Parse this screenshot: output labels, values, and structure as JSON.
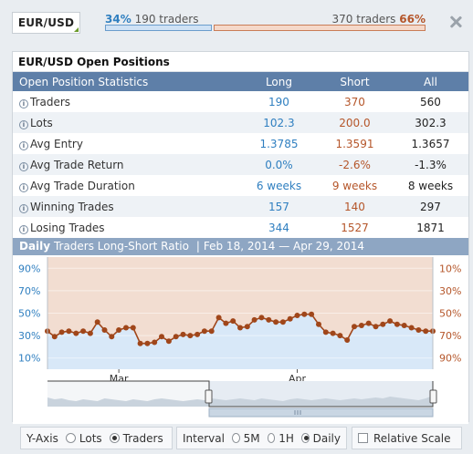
{
  "header": {
    "symbol": "EUR/USD",
    "long_pct": "34%",
    "long_traders": "190 traders",
    "short_traders": "370 traders",
    "short_pct": "66%",
    "long_fraction": 0.34
  },
  "panel": {
    "title": "EUR/USD Open Positions",
    "columns": [
      "Open Position Statistics",
      "Long",
      "Short",
      "All"
    ],
    "rows": [
      {
        "label": "Traders",
        "long": "190",
        "short": "370",
        "all": "560"
      },
      {
        "label": "Lots",
        "long": "102.3",
        "short": "200.0",
        "all": "302.3"
      },
      {
        "label": "Avg Entry",
        "long": "1.3785",
        "short": "1.3591",
        "all": "1.3657"
      },
      {
        "label": "Avg Trade Return",
        "long": "0.0%",
        "short": "-2.6%",
        "all": "-1.3%"
      },
      {
        "label": "Avg Trade Duration",
        "long": "6 weeks",
        "short": "9 weeks",
        "all": "8 weeks"
      },
      {
        "label": "Winning Trades",
        "long": "157",
        "short": "140",
        "all": "297"
      },
      {
        "label": "Losing Trades",
        "long": "344",
        "short": "1527",
        "all": "1871"
      }
    ],
    "info_glyph": "i"
  },
  "chart_header": {
    "period": "Daily",
    "title": "Traders Long-Short Ratio",
    "separator": "|",
    "range": "Feb 18, 2014 — Apr 29, 2014"
  },
  "chart_data": {
    "type": "area",
    "left_axis_ticks": [
      "90%",
      "70%",
      "50%",
      "30%",
      "10%"
    ],
    "left_axis_values": [
      90,
      70,
      50,
      30,
      10
    ],
    "right_axis_ticks": [
      "10%",
      "30%",
      "50%",
      "70%",
      "90%"
    ],
    "x_ticks": [
      "Mar",
      "Apr"
    ],
    "x_tick_index": [
      10,
      35
    ],
    "ylim": [
      0,
      100
    ],
    "series": [
      {
        "values": [
          34,
          29,
          33,
          34,
          32,
          34,
          32,
          42,
          35,
          29,
          35,
          37,
          37,
          23,
          23,
          24,
          29,
          25,
          29,
          31,
          30,
          31,
          34,
          34,
          46,
          41,
          43,
          37,
          38,
          44,
          46,
          44,
          42,
          42,
          45,
          48,
          49,
          49,
          40,
          33,
          32,
          30,
          26,
          38,
          39,
          41,
          38,
          40,
          43,
          40,
          39,
          37,
          35,
          34,
          34
        ]
      }
    ],
    "colors": {
      "long": "#2f7fc0",
      "short": "#b5562a",
      "line": "#a0461a",
      "long_fill": "#d8e8f8",
      "short_fill": "#f2ddd1"
    }
  },
  "controls": {
    "yaxis_label": "Y-Axis",
    "yaxis_options": [
      "Lots",
      "Traders"
    ],
    "yaxis_selected": "Traders",
    "interval_label": "Interval",
    "interval_options": [
      "5M",
      "1H",
      "Daily"
    ],
    "interval_selected": "Daily",
    "relative_scale_label": "Relative Scale",
    "relative_scale_checked": false
  }
}
